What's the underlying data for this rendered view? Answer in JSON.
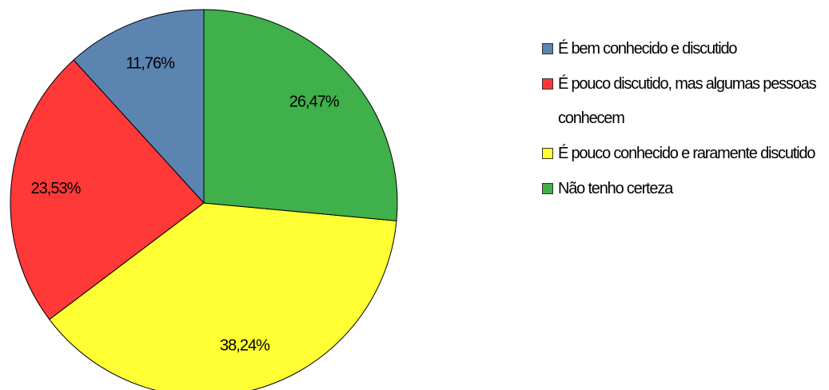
{
  "chart_data": {
    "type": "pie",
    "categories": [
      "É bem conhecido e discutido",
      "É pouco discutido, mas algumas pessoas conhecem",
      "É pouco conhecido e raramente discutido",
      "Não tenho certeza"
    ],
    "values": [
      11.76,
      23.53,
      38.24,
      26.47
    ],
    "value_labels": [
      "11,76%",
      "23,53%",
      "38,24%",
      "26,47%"
    ],
    "colors": [
      "#5b84b1",
      "#ff3838",
      "#ffff33",
      "#3fb04a"
    ],
    "legend": "right"
  }
}
